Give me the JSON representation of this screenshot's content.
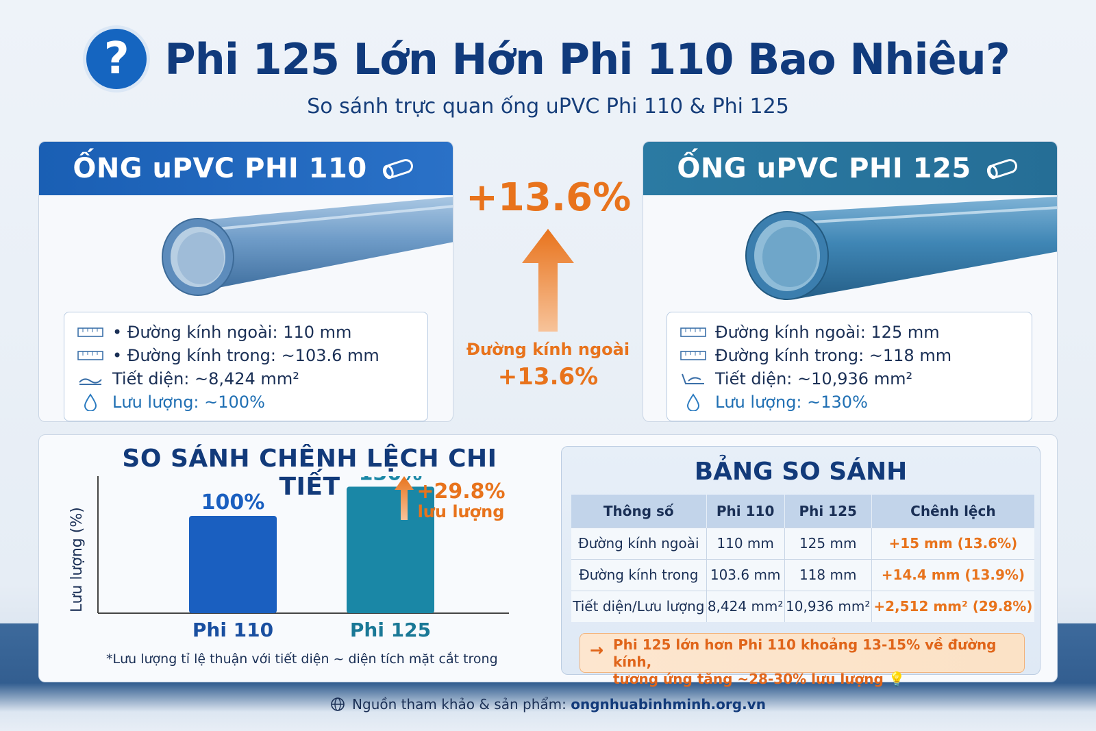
{
  "header": {
    "icon": "question-circle-icon",
    "title": "Phi 125 Lớn Hớn Phi 110 Bao Nhiêu?",
    "subtitle": "So sánh trực quan ống uPVC Phi 110 & Phi 125"
  },
  "pipe_left": {
    "title": "ỐNG uPVC PHI 110",
    "specs": [
      {
        "icon": "ruler-icon",
        "text": "• Đường kính ngoài: 110 mm"
      },
      {
        "icon": "ruler-icon",
        "text": "• Đường kính trong: ~103.6 mm"
      },
      {
        "icon": "cross-section-icon",
        "text": "Tiết diện: ~8,424 mm²"
      },
      {
        "icon": "water-drop-icon",
        "text": "Lưu lượng: ~100%"
      }
    ]
  },
  "pipe_right": {
    "title": "ỐNG uPVC PHI 125",
    "specs": [
      {
        "icon": "ruler-icon",
        "text": "Đường kính ngoài: 125 mm"
      },
      {
        "icon": "ruler-icon",
        "text": "Đường kính trong: ~118 mm"
      },
      {
        "icon": "cross-section-icon",
        "text": "Tiết diện: ~10,936 mm²"
      },
      {
        "icon": "water-drop-icon",
        "text": "Lưu lượng: ~130%"
      }
    ]
  },
  "middle": {
    "top_value": "+13.6%",
    "label": "Đường kính ngoài",
    "value": "+13.6%"
  },
  "chart_data": {
    "type": "bar",
    "title": "SO SÁNH CHÊNH LỆCH CHI TIẾT",
    "ylabel": "Lưu lượng (%)",
    "xlabel": "",
    "categories": [
      "Phi 110",
      "Phi 125"
    ],
    "values": [
      100,
      130
    ],
    "value_labels": [
      "100%",
      "130%"
    ],
    "colors": [
      "#1a5fc0",
      "#1a87a6"
    ],
    "ylim": [
      0,
      200
    ],
    "annotation": {
      "value": "+29.8%",
      "label": "lưu lượng"
    },
    "note": "*Lưu lượng tỉ lệ thuận với tiết diện ~ diện tích mặt cắt trong",
    "grid": false
  },
  "table": {
    "title": "BẢNG SO SÁNH",
    "headers": [
      "Thông số",
      "Phi 110",
      "Phi 125",
      "Chênh lệch"
    ],
    "rows": [
      [
        "Đường kính ngoài",
        "110 mm",
        "125 mm",
        "+15 mm (13.6%)"
      ],
      [
        "Đường kính trong",
        "103.6 mm",
        "118 mm",
        "+14.4 mm (13.9%)"
      ],
      [
        "Tiết diện/Lưu lượng",
        "8,424 mm²",
        "10,936 mm²",
        "+2,512 mm² (29.8%)"
      ]
    ],
    "callout_line1": "Phi 125 lớn hơn Phi 110 khoảng 13-15% về đường kính,",
    "callout_line2": "tương ứng tăng ~28-30% lưu lượng",
    "callout_icon": "lightbulb-icon"
  },
  "footer": {
    "icon": "globe-icon",
    "label": "Nguồn tham khảo & sản phẩm:",
    "url": "ongnhuabinhminh.org.vn"
  }
}
